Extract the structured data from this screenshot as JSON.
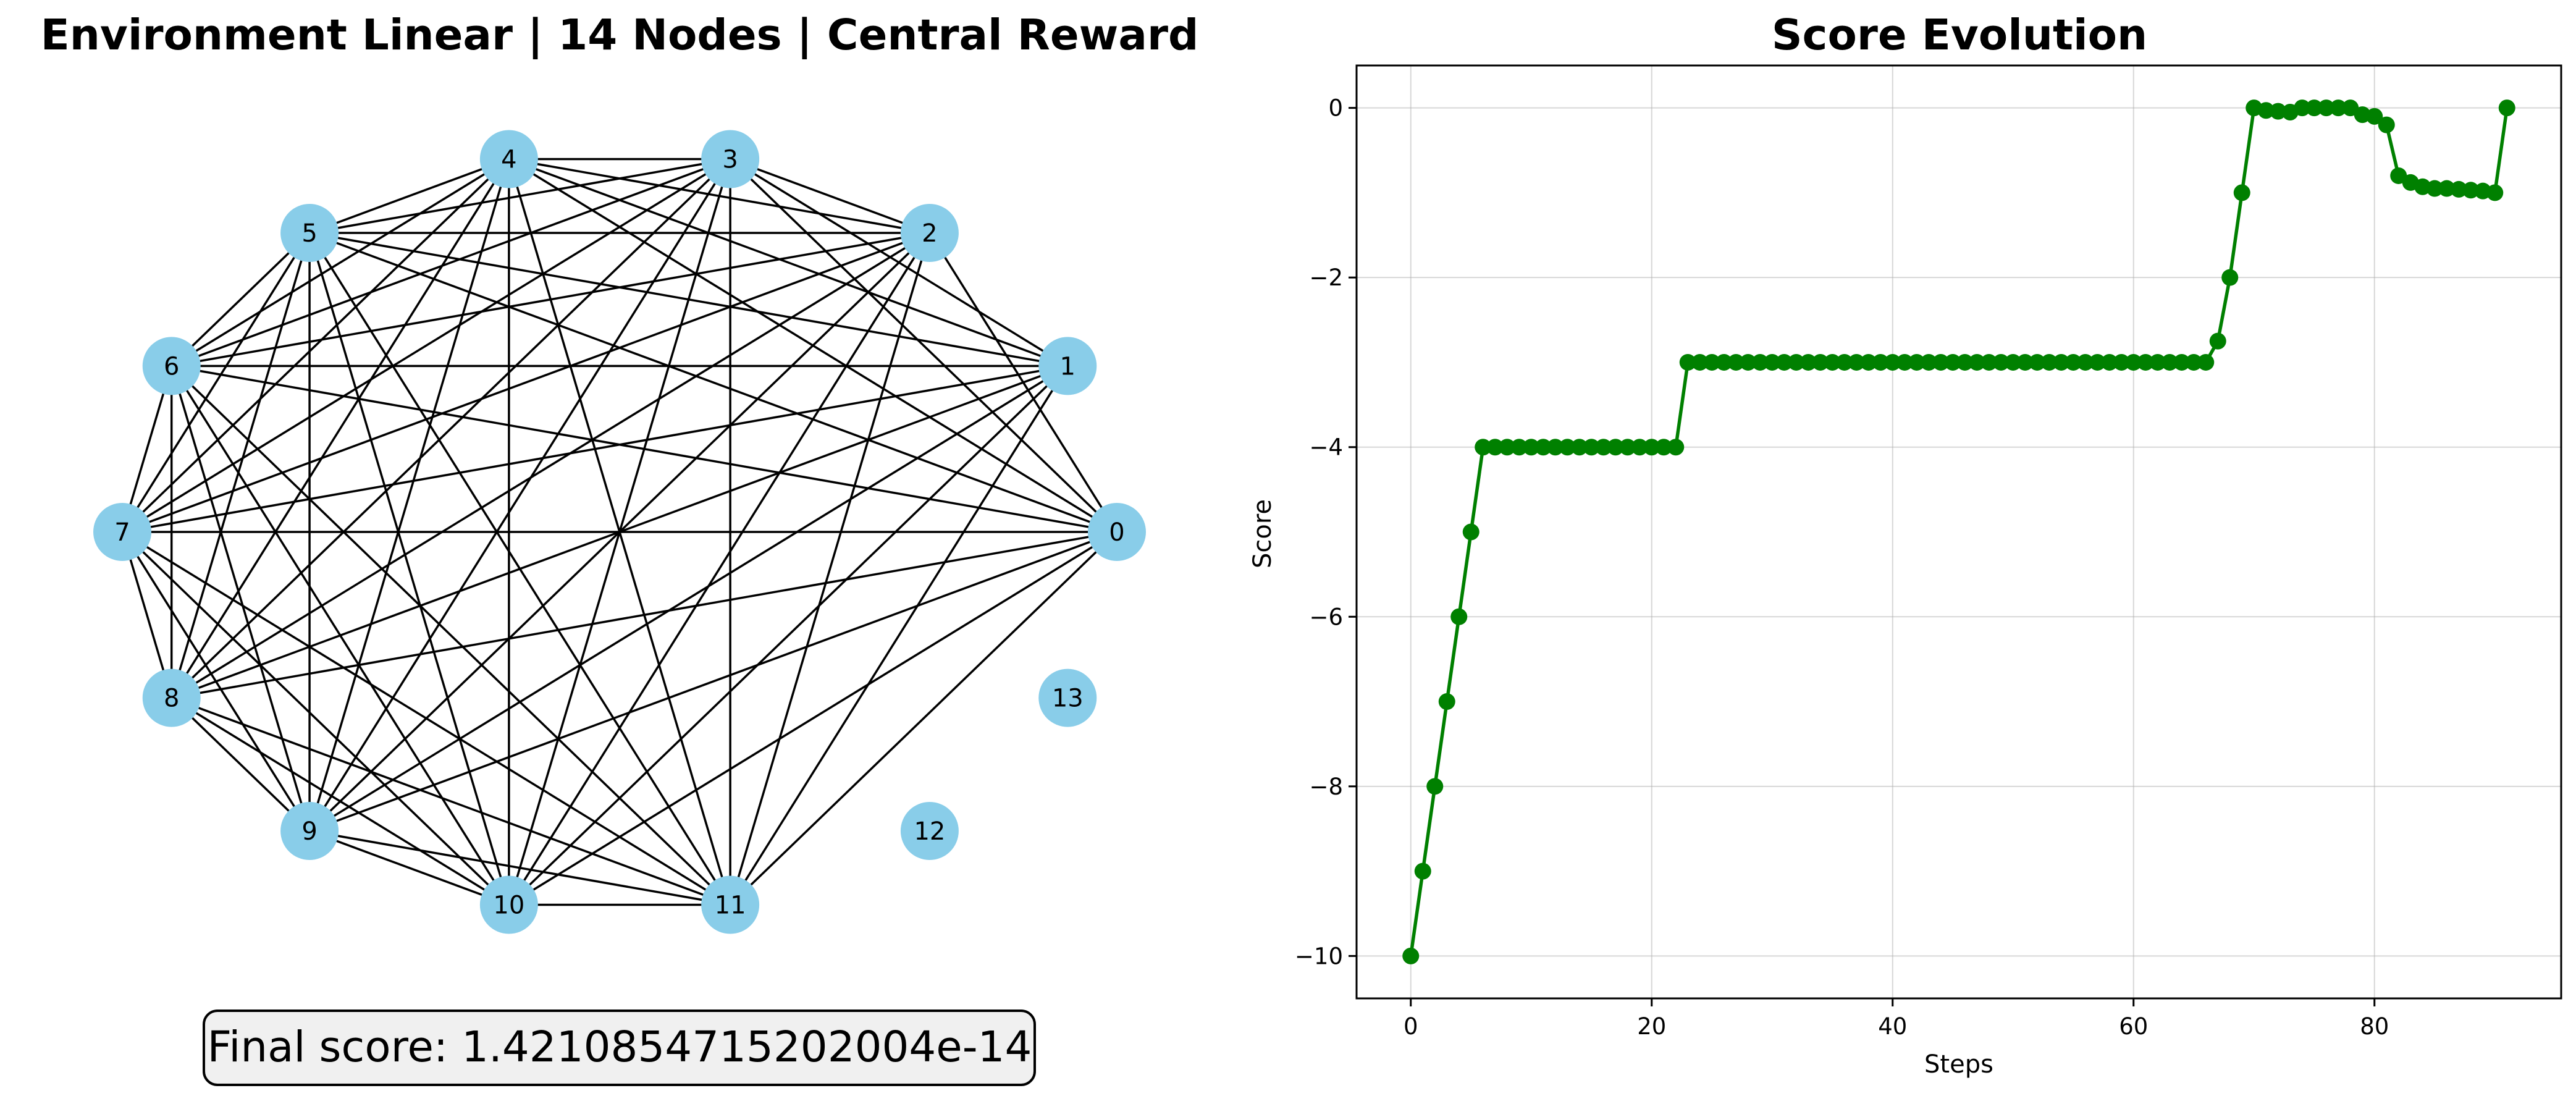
{
  "chart_data": [
    {
      "type": "network",
      "title": "Environment Linear | 14 Nodes | Central Reward",
      "node_color": "#89cde9",
      "edge_color": "#000000",
      "nodes": [
        "0",
        "1",
        "2",
        "3",
        "4",
        "5",
        "6",
        "7",
        "8",
        "9",
        "10",
        "11",
        "12",
        "13"
      ],
      "edges": [
        [
          0,
          2
        ],
        [
          0,
          3
        ],
        [
          0,
          4
        ],
        [
          0,
          5
        ],
        [
          0,
          6
        ],
        [
          0,
          7
        ],
        [
          0,
          8
        ],
        [
          0,
          9
        ],
        [
          0,
          10
        ],
        [
          0,
          11
        ],
        [
          1,
          3
        ],
        [
          1,
          4
        ],
        [
          1,
          5
        ],
        [
          1,
          6
        ],
        [
          1,
          7
        ],
        [
          1,
          8
        ],
        [
          1,
          9
        ],
        [
          1,
          10
        ],
        [
          1,
          11
        ],
        [
          2,
          3
        ],
        [
          2,
          4
        ],
        [
          2,
          5
        ],
        [
          2,
          6
        ],
        [
          2,
          7
        ],
        [
          2,
          8
        ],
        [
          2,
          9
        ],
        [
          2,
          10
        ],
        [
          2,
          11
        ],
        [
          3,
          4
        ],
        [
          3,
          5
        ],
        [
          3,
          6
        ],
        [
          3,
          7
        ],
        [
          3,
          8
        ],
        [
          3,
          9
        ],
        [
          3,
          10
        ],
        [
          3,
          11
        ],
        [
          4,
          5
        ],
        [
          4,
          6
        ],
        [
          4,
          7
        ],
        [
          4,
          8
        ],
        [
          4,
          9
        ],
        [
          4,
          10
        ],
        [
          4,
          11
        ],
        [
          5,
          6
        ],
        [
          5,
          7
        ],
        [
          5,
          8
        ],
        [
          5,
          9
        ],
        [
          5,
          10
        ],
        [
          5,
          11
        ],
        [
          6,
          7
        ],
        [
          6,
          8
        ],
        [
          6,
          9
        ],
        [
          6,
          10
        ],
        [
          6,
          11
        ],
        [
          7,
          8
        ],
        [
          7,
          9
        ],
        [
          7,
          10
        ],
        [
          7,
          11
        ],
        [
          8,
          9
        ],
        [
          8,
          10
        ],
        [
          8,
          11
        ],
        [
          9,
          10
        ],
        [
          9,
          11
        ],
        [
          10,
          11
        ]
      ],
      "annotation": "Final score: 1.4210854715202004e-14"
    },
    {
      "type": "line",
      "title": "Score Evolution",
      "xlabel": "Steps",
      "ylabel": "Score",
      "xlim": [
        -4.5,
        95.5
      ],
      "ylim": [
        -10.5,
        0.5
      ],
      "xticks": [
        0,
        20,
        40,
        60,
        80
      ],
      "yticks": [
        0,
        -2,
        -4,
        -6,
        -8,
        -10
      ],
      "ytick_labels": [
        "0",
        "−2",
        "−4",
        "−6",
        "−8",
        "−10"
      ],
      "grid": true,
      "color": "#008000",
      "series": [
        {
          "x": [
            0,
            1,
            2,
            3,
            4,
            5,
            6,
            7,
            8,
            9,
            10,
            11,
            12,
            13,
            14,
            15,
            16,
            17,
            18,
            19,
            20,
            21,
            22,
            23,
            24,
            25,
            26,
            27,
            28,
            29,
            30,
            31,
            32,
            33,
            34,
            35,
            36,
            37,
            38,
            39,
            40,
            41,
            42,
            43,
            44,
            45,
            46,
            47,
            48,
            49,
            50,
            51,
            52,
            53,
            54,
            55,
            56,
            57,
            58,
            59,
            60,
            61,
            62,
            63,
            64,
            65,
            66,
            67,
            68,
            69,
            70,
            71,
            72,
            73,
            74,
            75,
            76,
            77,
            78,
            79,
            80,
            81,
            82,
            83,
            84,
            85,
            86,
            87,
            88,
            89,
            90,
            91
          ],
          "y": [
            -10,
            -9,
            -8,
            -7,
            -6,
            -5,
            -4,
            -4,
            -4,
            -4,
            -4,
            -4,
            -4,
            -4,
            -4,
            -4,
            -4,
            -4,
            -4,
            -4,
            -4,
            -4,
            -4,
            -3,
            -3,
            -3,
            -3,
            -3,
            -3,
            -3,
            -3,
            -3,
            -3,
            -3,
            -3,
            -3,
            -3,
            -3,
            -3,
            -3,
            -3,
            -3,
            -3,
            -3,
            -3,
            -3,
            -3,
            -3,
            -3,
            -3,
            -3,
            -3,
            -3,
            -3,
            -3,
            -3,
            -3,
            -3,
            -3,
            -3,
            -3,
            -3,
            -3,
            -3,
            -3,
            -3,
            -3,
            -2.75,
            -2,
            -1,
            0,
            -0.03,
            -0.04,
            -0.05,
            0,
            0,
            0,
            0,
            0,
            -0.08,
            -0.1,
            -0.2,
            -0.8,
            -0.88,
            -0.93,
            -0.95,
            -0.95,
            -0.96,
            -0.97,
            -0.98,
            -1,
            0
          ]
        }
      ]
    }
  ]
}
